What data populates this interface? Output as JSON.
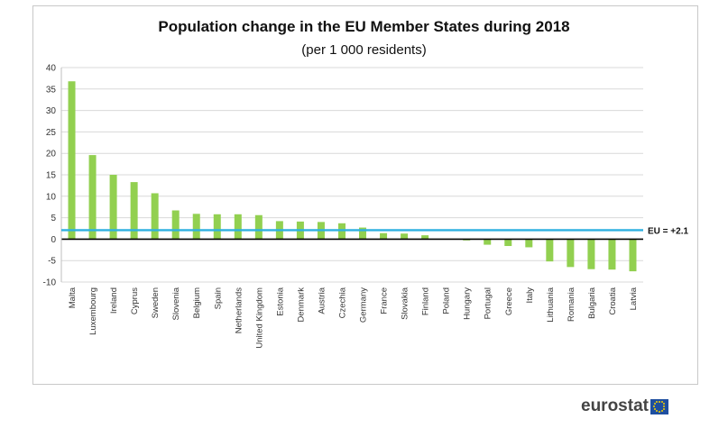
{
  "chart_data": {
    "type": "bar",
    "title": "Population change in the EU Member States during 2018",
    "subtitle": "(per 1 000 residents)",
    "categories": [
      "Malta",
      "Luxembourg",
      "Ireland",
      "Cyprus",
      "Sweden",
      "Slovenia",
      "Belgium",
      "Spain",
      "Netherlands",
      "United Kingdom",
      "Estonia",
      "Denmark",
      "Austria",
      "Czechia",
      "Germany",
      "France",
      "Slovakia",
      "Finland",
      "Poland",
      "Hungary",
      "Portugal",
      "Greece",
      "Italy",
      "Lithuania",
      "Romania",
      "Bulgaria",
      "Croatia",
      "Latvia"
    ],
    "values": [
      36.8,
      19.6,
      15.0,
      13.3,
      10.7,
      6.7,
      5.9,
      5.8,
      5.8,
      5.6,
      4.2,
      4.1,
      4.0,
      3.7,
      2.7,
      1.4,
      1.3,
      0.9,
      0.0,
      -0.3,
      -1.3,
      -1.6,
      -1.9,
      -5.2,
      -6.5,
      -7.0,
      -7.1,
      -7.5
    ],
    "ylim": [
      -10,
      40
    ],
    "yticks": [
      -10,
      -5,
      0,
      5,
      10,
      15,
      20,
      25,
      30,
      35,
      40
    ],
    "grid": true,
    "bar_color": "#92d050",
    "reference_line": {
      "value": 2.1,
      "label": "EU = +2.1",
      "color": "#2eb0e0"
    }
  },
  "logo": {
    "text": "eurostat"
  }
}
